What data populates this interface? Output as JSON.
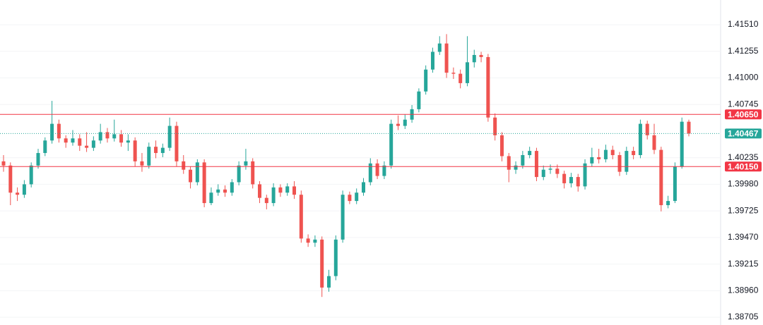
{
  "chart_data": {
    "type": "candlestick",
    "ylim": [
      1.38631,
      1.41747
    ],
    "yticks": [
      1.38705,
      {
        "value": 1.3896,
        "label": "1.38960"
      },
      1.39215,
      {
        "value": 1.3947,
        "label": "1.39470"
      },
      1.39725,
      {
        "value": 1.3998,
        "label": "1.39980"
      },
      1.40235,
      1.40745,
      {
        "value": 1.41,
        "label": "1.41000"
      },
      1.41255,
      {
        "value": 1.4151,
        "label": "1.41510"
      }
    ],
    "grid": true,
    "up_color": "#26a69a",
    "down_color": "#ef5350",
    "levels": [
      {
        "value": 1.4065,
        "label": "1.40650",
        "color": "#f23645",
        "style": "solid"
      },
      {
        "value": 1.40467,
        "label": "1.40467",
        "color": "#26a69a",
        "style": "dotted"
      },
      {
        "value": 1.4015,
        "label": "1.40150",
        "color": "#f23645",
        "style": "solid"
      }
    ],
    "open": [
      1.402,
      1.4016,
      1.399,
      1.3988,
      1.3998,
      1.4016,
      1.4028,
      1.404,
      1.4056,
      1.4042,
      1.4038,
      1.4042,
      1.4035,
      1.4033,
      1.404,
      1.4048,
      1.4042,
      1.4046,
      1.4038,
      1.404,
      1.402,
      1.4016,
      1.4034,
      1.4028,
      1.4033,
      1.4054,
      1.402,
      1.4012,
      1.4,
      1.4019,
      1.398,
      1.399,
      1.3993,
      1.399,
      1.4,
      1.4016,
      1.402,
      1.3998,
      1.3985,
      1.398,
      1.3995,
      1.399,
      1.3996,
      1.3988,
      1.3946,
      1.3942,
      1.3945,
      1.3899,
      1.391,
      1.3945,
      1.3988,
      1.3982,
      1.399,
      1.4,
      1.4018,
      1.4006,
      1.4016,
      1.4056,
      1.4054,
      1.406,
      1.407,
      1.4087,
      1.4108,
      1.4125,
      1.4133,
      1.4105,
      1.4104,
      1.4095,
      1.4115,
      1.4122,
      1.412,
      1.4062,
      1.4045,
      1.4025,
      1.4012,
      1.4016,
      1.4026,
      1.403,
      1.4005,
      1.4012,
      1.4013,
      1.4008,
      1.3999,
      1.4005,
      1.3996,
      1.4018,
      1.4024,
      1.4022,
      1.4031,
      1.4026,
      1.401,
      1.403,
      1.4026,
      1.4056,
      1.4045,
      1.4031,
      1.3978,
      1.3982,
      1.4015,
      1.4058
    ],
    "high": [
      1.4026,
      1.4019,
      1.3995,
      1.4002,
      1.4019,
      1.4032,
      1.4043,
      1.4078,
      1.406,
      1.4045,
      1.405,
      1.4046,
      1.4048,
      1.4044,
      1.4056,
      1.4052,
      1.406,
      1.405,
      1.4046,
      1.4043,
      1.4028,
      1.4038,
      1.404,
      1.4037,
      1.4062,
      1.4058,
      1.4026,
      1.4015,
      1.4022,
      1.4022,
      1.3995,
      1.3998,
      1.3997,
      1.4003,
      1.402,
      1.4032,
      1.4023,
      1.4001,
      1.3988,
      1.3999,
      1.3998,
      1.3999,
      1.4001,
      1.3992,
      1.395,
      1.3949,
      1.3948,
      1.3916,
      1.3949,
      1.3992,
      1.3991,
      1.3994,
      1.4004,
      1.4023,
      1.4022,
      1.402,
      1.406,
      1.4064,
      1.4065,
      1.4074,
      1.409,
      1.4112,
      1.4129,
      1.414,
      1.4142,
      1.411,
      1.4108,
      1.414,
      1.4127,
      1.4125,
      1.4123,
      1.4066,
      1.4048,
      1.4028,
      1.402,
      1.403,
      1.4034,
      1.4033,
      1.4016,
      1.4017,
      1.4017,
      1.4011,
      1.4009,
      1.4008,
      1.4022,
      1.4033,
      1.4032,
      1.4036,
      1.4035,
      1.4029,
      1.4034,
      1.4034,
      1.406,
      1.4059,
      1.4056,
      1.4034,
      1.3987,
      1.4019,
      1.4062,
      1.406
    ],
    "low": [
      1.401,
      1.3978,
      1.3982,
      1.3985,
      1.3995,
      1.4013,
      1.4025,
      1.4037,
      1.4038,
      1.4033,
      1.4035,
      1.403,
      1.4029,
      1.403,
      1.4037,
      1.4038,
      1.4039,
      1.4034,
      1.403,
      1.4015,
      1.401,
      1.4013,
      1.4023,
      1.4024,
      1.403,
      1.4015,
      1.4008,
      1.3994,
      1.3997,
      1.3976,
      1.3978,
      1.3987,
      1.3986,
      1.3987,
      1.3997,
      1.4012,
      1.3994,
      1.398,
      1.3974,
      1.3977,
      1.3986,
      1.3987,
      1.3984,
      1.3942,
      1.3938,
      1.3938,
      1.389,
      1.3895,
      1.3906,
      1.3942,
      1.3979,
      1.3979,
      1.3987,
      1.3997,
      1.4003,
      1.4003,
      1.4013,
      1.405,
      1.4051,
      1.4057,
      1.4067,
      1.4084,
      1.4105,
      1.4122,
      1.41,
      1.4099,
      1.409,
      1.4092,
      1.411,
      1.4115,
      1.4058,
      1.404,
      1.402,
      1.4,
      1.4008,
      1.4013,
      1.4023,
      1.4001,
      1.4002,
      1.4008,
      1.4004,
      1.3994,
      1.3995,
      1.3991,
      1.3993,
      1.4015,
      1.4018,
      1.4019,
      1.4022,
      1.4006,
      1.4007,
      1.4022,
      1.4023,
      1.4041,
      1.4027,
      1.3972,
      1.3975,
      1.398,
      1.4013,
      1.4044
    ],
    "close": [
      1.4016,
      1.399,
      1.3988,
      1.3998,
      1.4016,
      1.4028,
      1.404,
      1.4056,
      1.4042,
      1.4038,
      1.4042,
      1.4035,
      1.4033,
      1.404,
      1.4048,
      1.4042,
      1.4046,
      1.4038,
      1.404,
      1.402,
      1.4016,
      1.4034,
      1.4028,
      1.4033,
      1.4054,
      1.402,
      1.4012,
      1.4,
      1.4019,
      1.398,
      1.399,
      1.3993,
      1.399,
      1.4,
      1.4016,
      1.402,
      1.3998,
      1.3985,
      1.398,
      1.3995,
      1.399,
      1.3996,
      1.3988,
      1.3946,
      1.3942,
      1.3945,
      1.3899,
      1.391,
      1.3945,
      1.3988,
      1.3982,
      1.399,
      1.4,
      1.4018,
      1.4006,
      1.4016,
      1.4056,
      1.4054,
      1.406,
      1.407,
      1.4087,
      1.4108,
      1.4125,
      1.4133,
      1.4105,
      1.4104,
      1.4095,
      1.4115,
      1.4122,
      1.412,
      1.4062,
      1.4045,
      1.4025,
      1.4012,
      1.4016,
      1.4026,
      1.403,
      1.4005,
      1.4012,
      1.4013,
      1.4008,
      1.3999,
      1.4005,
      1.3996,
      1.4018,
      1.4024,
      1.4022,
      1.4031,
      1.4026,
      1.401,
      1.403,
      1.4026,
      1.4056,
      1.4045,
      1.4031,
      1.3978,
      1.3982,
      1.4015,
      1.4058,
      1.40467
    ]
  }
}
